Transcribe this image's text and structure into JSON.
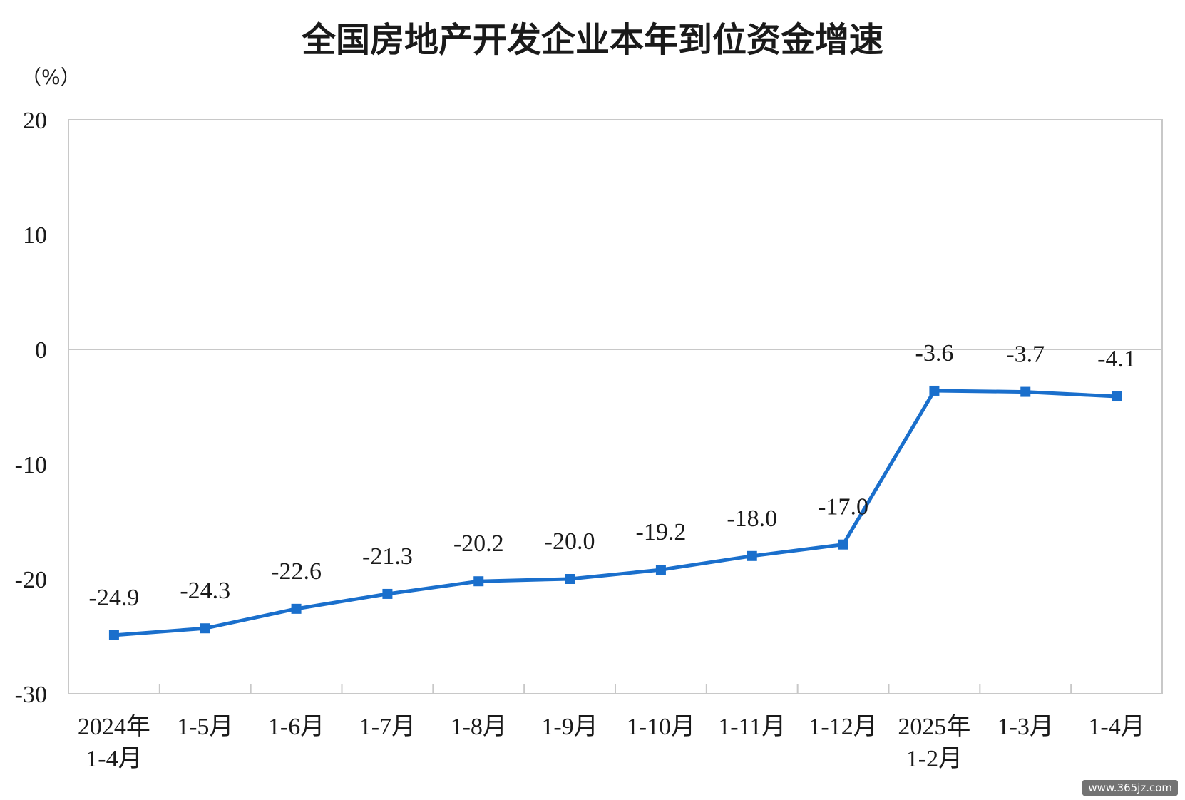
{
  "chart_data": {
    "type": "line",
    "title": "全国房地产开发企业本年到位资金增速",
    "unit": "（%）",
    "categories": [
      [
        "2024年",
        "1-4月"
      ],
      [
        "1-5月"
      ],
      [
        "1-6月"
      ],
      [
        "1-7月"
      ],
      [
        "1-8月"
      ],
      [
        "1-9月"
      ],
      [
        "1-10月"
      ],
      [
        "1-11月"
      ],
      [
        "1-12月"
      ],
      [
        "2025年",
        "1-2月"
      ],
      [
        "1-3月"
      ],
      [
        "1-4月"
      ]
    ],
    "values": [
      -24.9,
      -24.3,
      -22.6,
      -21.3,
      -20.2,
      -20.0,
      -19.2,
      -18.0,
      -17.0,
      -3.6,
      -3.7,
      -4.1
    ],
    "value_labels": [
      "-24.9",
      "-24.3",
      "-22.6",
      "-21.3",
      "-20.2",
      "-20.0",
      "-19.2",
      "-18.0",
      "-17.0",
      "-3.6",
      "-3.7",
      "-4.1"
    ],
    "ylim": [
      -30,
      20
    ],
    "yticks": [
      20,
      10,
      0,
      -10,
      -20,
      -30
    ],
    "grid": false,
    "line_color": "#1a6fcc",
    "frame_color": "#c8c8c8"
  },
  "watermark": "www.365jz.com"
}
